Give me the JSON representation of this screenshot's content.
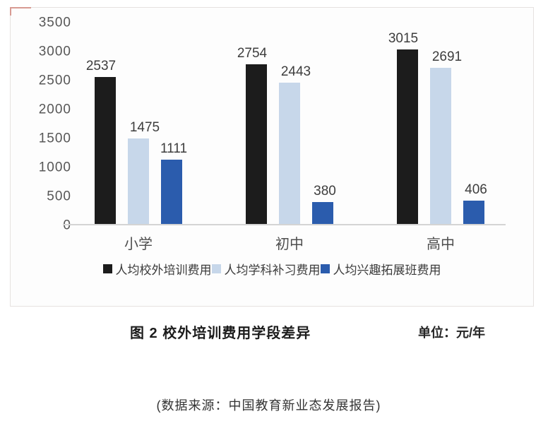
{
  "figure": {
    "caption": "图 2  校外培训费用学段差异",
    "unit": "单位：元/年",
    "source": "(数据来源：中国教育新业态发展报告)"
  },
  "colors": {
    "series_training": "#1c1c1c",
    "series_subject": "#c7d7ea",
    "series_interest": "#2b5cad",
    "axis_line": "#d4d4d4",
    "tick_text": "#575757",
    "card_border": "#e6e2e0",
    "corner_mark": "#d89b93"
  },
  "chart_data": {
    "type": "bar",
    "title": "图 2 校外培训费用学段差异",
    "unit": "元/年",
    "categories": [
      "小学",
      "初中",
      "高中"
    ],
    "series": [
      {
        "name": "人均校外培训费用",
        "color": "#1c1c1c",
        "values": [
          2537,
          2754,
          3015
        ],
        "label_offset": -6
      },
      {
        "name": "人均学科补习费用",
        "color": "#c7d7ea",
        "values": [
          1475,
          2443,
          2691
        ],
        "label_offset": 9
      },
      {
        "name": "人均兴趣拓展班费用",
        "color": "#2b5cad",
        "values": [
          1111,
          380,
          406
        ],
        "label_offset": 3
      }
    ],
    "yticks": [
      0,
      500,
      1000,
      1500,
      2000,
      2500,
      3000,
      3500
    ],
    "ylim": [
      0,
      3500
    ],
    "grid": false,
    "legend_position": "bottom",
    "xlabel": "",
    "ylabel": ""
  }
}
